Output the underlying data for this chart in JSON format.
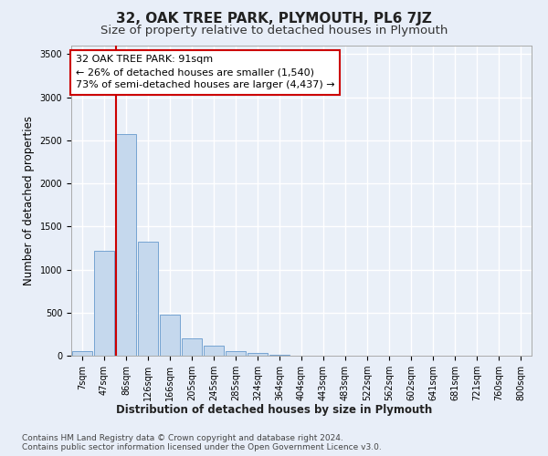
{
  "title": "32, OAK TREE PARK, PLYMOUTH, PL6 7JZ",
  "subtitle": "Size of property relative to detached houses in Plymouth",
  "xlabel": "Distribution of detached houses by size in Plymouth",
  "ylabel": "Number of detached properties",
  "footer_line1": "Contains HM Land Registry data © Crown copyright and database right 2024.",
  "footer_line2": "Contains public sector information licensed under the Open Government Licence v3.0.",
  "bar_labels": [
    "7sqm",
    "47sqm",
    "86sqm",
    "126sqm",
    "166sqm",
    "205sqm",
    "245sqm",
    "285sqm",
    "324sqm",
    "364sqm",
    "404sqm",
    "443sqm",
    "483sqm",
    "522sqm",
    "562sqm",
    "602sqm",
    "641sqm",
    "681sqm",
    "721sqm",
    "760sqm",
    "800sqm"
  ],
  "bar_values": [
    50,
    1220,
    2570,
    1320,
    480,
    200,
    115,
    50,
    30,
    10,
    5,
    0,
    0,
    0,
    0,
    0,
    0,
    0,
    0,
    0,
    0
  ],
  "bar_color": "#c5d8ed",
  "bar_edge_color": "#6699cc",
  "background_color": "#e8eef8",
  "plot_background": "#eaf0f8",
  "grid_color": "#ffffff",
  "property_line_color": "#cc0000",
  "property_bar_index": 2,
  "property_label": "32 OAK TREE PARK: 91sqm",
  "annotation_line1": "← 26% of detached houses are smaller (1,540)",
  "annotation_line2": "73% of semi-detached houses are larger (4,437) →",
  "annotation_box_color": "#ffffff",
  "annotation_border_color": "#cc0000",
  "ylim": [
    0,
    3600
  ],
  "yticks": [
    0,
    500,
    1000,
    1500,
    2000,
    2500,
    3000,
    3500
  ],
  "title_fontsize": 11,
  "subtitle_fontsize": 9.5,
  "axis_label_fontsize": 8.5,
  "tick_fontsize": 7,
  "annotation_fontsize": 8,
  "footer_fontsize": 6.5
}
